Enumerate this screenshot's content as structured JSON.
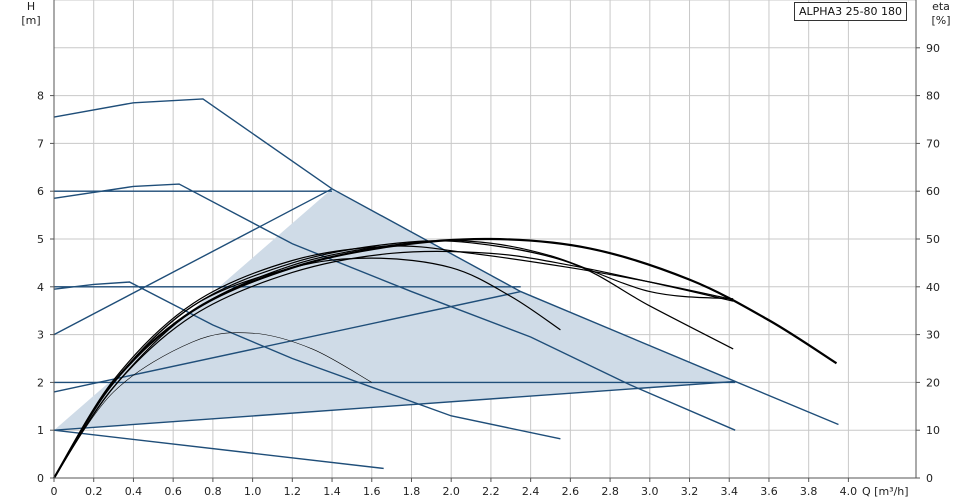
{
  "chart_data": {
    "type": "line",
    "title": "",
    "model_label": "ALPHA3 25-80 180",
    "xlabel": "Q [m³/h]",
    "ylabel_left": {
      "name": "H",
      "unit": "[m]"
    },
    "ylabel_right": {
      "name": "eta",
      "unit": "[%]"
    },
    "xlim": [
      0,
      4.4
    ],
    "ylim_left": [
      0,
      10
    ],
    "ylim_right": [
      0,
      100
    ],
    "x_ticks": [
      "0",
      "0.2",
      "0.4",
      "0.6",
      "0.8",
      "1.0",
      "1.2",
      "1.4",
      "1.6",
      "1.8",
      "2.0",
      "2.2",
      "2.4",
      "2.6",
      "2.8",
      "3.0",
      "3.2",
      "3.4",
      "3.6",
      "3.8",
      "4.0"
    ],
    "y_left_ticks": [
      "0",
      "1",
      "2",
      "3",
      "4",
      "5",
      "6",
      "7",
      "8"
    ],
    "y_right_ticks": [
      "0",
      "10",
      "20",
      "30",
      "40",
      "50",
      "60",
      "70",
      "80",
      "90"
    ],
    "grid": true,
    "colors": {
      "head_curves": "#1f4e79",
      "efficiency_curves": "#000000",
      "shaded_region": "#cfdbe7",
      "grid": "#c8c8c8"
    },
    "shaded_region": {
      "x": [
        0,
        1.4,
        2.35,
        3.43,
        0
      ],
      "y": [
        1.0,
        6.05,
        3.9,
        2.02,
        1.0
      ]
    },
    "head_series": [
      {
        "x": [
          0,
          0.4,
          0.75,
          1.4,
          2.35,
          3.43,
          3.95
        ],
        "y": [
          7.55,
          7.85,
          7.93,
          6.05,
          3.9,
          2.02,
          1.12
        ]
      },
      {
        "x": [
          0,
          0.4,
          0.63,
          1.2,
          1.8,
          2.4,
          2.9,
          3.43
        ],
        "y": [
          5.85,
          6.1,
          6.15,
          4.9,
          3.9,
          2.95,
          1.95,
          1.0
        ]
      },
      {
        "x": [
          0,
          0.2,
          0.38,
          0.8,
          1.2,
          1.6,
          2.0,
          2.55
        ],
        "y": [
          3.95,
          4.05,
          4.1,
          3.2,
          2.5,
          1.9,
          1.3,
          0.82
        ]
      },
      {
        "x": [
          0,
          1.66
        ],
        "y": [
          1.0,
          0.2
        ]
      },
      {
        "x": [
          0,
          1.4
        ],
        "y": [
          6.0,
          6.0
        ]
      },
      {
        "x": [
          0,
          2.35
        ],
        "y": [
          4.0,
          4.0
        ]
      },
      {
        "x": [
          0,
          3.43
        ],
        "y": [
          2.0,
          2.0
        ]
      },
      {
        "x": [
          0,
          1.4
        ],
        "y": [
          3.0,
          6.05
        ]
      },
      {
        "x": [
          0,
          2.35
        ],
        "y": [
          1.8,
          3.9
        ]
      },
      {
        "x": [
          0,
          3.43
        ],
        "y": [
          1.0,
          2.02
        ]
      }
    ],
    "efficiency_series": [
      {
        "x": [
          0,
          0.3,
          0.7,
          1.2,
          1.7,
          2.2,
          2.7,
          3.2,
          3.6,
          3.94
        ],
        "y": [
          0,
          20,
          35,
          44,
          48.5,
          50,
          48,
          41.5,
          33,
          24
        ]
      },
      {
        "x": [
          0,
          0.3,
          0.7,
          1.2,
          1.7,
          2.1,
          2.5,
          3.0,
          3.42
        ],
        "y": [
          0,
          19,
          35,
          44.5,
          48.7,
          49.5,
          46.5,
          39,
          37.5
        ]
      },
      {
        "x": [
          0,
          0.3,
          0.7,
          1.2,
          1.7,
          2.1,
          2.6,
          3.0,
          3.42
        ],
        "y": [
          0,
          20,
          36,
          45,
          49,
          49.2,
          45,
          36,
          27
        ]
      },
      {
        "x": [
          0,
          0.3,
          0.7,
          1.2,
          1.7,
          2.2,
          2.6,
          3.0,
          3.42
        ],
        "y": [
          0,
          19,
          34,
          43,
          47,
          47,
          44.5,
          41,
          37
        ]
      },
      {
        "x": [
          0,
          0.3,
          0.7,
          1.2,
          1.6,
          2.0,
          2.3,
          2.55
        ],
        "y": [
          0,
          20,
          36,
          44,
          46,
          44,
          38,
          31
        ]
      },
      {
        "x": [
          0,
          0.3,
          0.7,
          1.2,
          1.7,
          2.1,
          2.6,
          3.0,
          3.4
        ],
        "y": [
          0,
          20.5,
          36.5,
          45.5,
          48.5,
          47,
          44,
          41,
          37.5
        ]
      },
      {
        "x": [
          0,
          0.3,
          0.7,
          1.0,
          1.3,
          1.6
        ],
        "y": [
          0,
          18,
          28.5,
          30.3,
          27,
          20
        ]
      }
    ]
  }
}
